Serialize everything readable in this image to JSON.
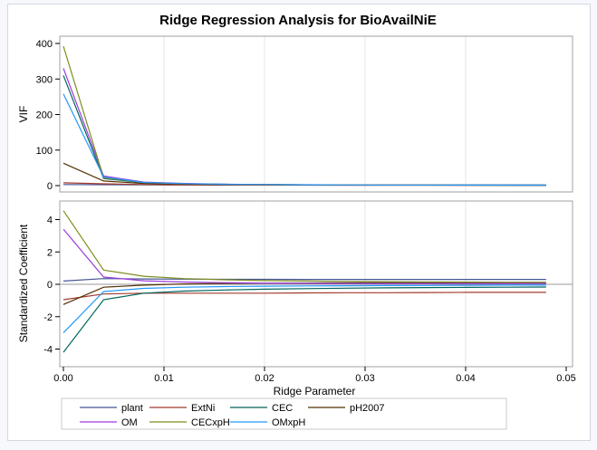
{
  "chart_data": [
    {
      "type": "line",
      "title": "Ridge Regression Analysis for BioAvailNiE",
      "panel": "top",
      "xlabel": "Ridge Parameter",
      "ylabel": "VIF",
      "xlim": [
        0,
        0.05
      ],
      "ylim": [
        -10,
        420
      ],
      "yticks": [
        0,
        100,
        200,
        300,
        400
      ],
      "grid": true,
      "x": [
        0,
        0.004,
        0.008,
        0.012,
        0.016,
        0.02,
        0.024,
        0.028,
        0.032,
        0.036,
        0.04,
        0.044,
        0.048
      ],
      "series": [
        {
          "name": "plant",
          "values": [
            3,
            2.5,
            2,
            1.8,
            1.6,
            1.5,
            1.4,
            1.3,
            1.3,
            1.2,
            1.2,
            1.2,
            1.1
          ]
        },
        {
          "name": "ExtNi",
          "values": [
            8,
            5,
            3,
            2,
            1.8,
            1.6,
            1.5,
            1.4,
            1.3,
            1.3,
            1.2,
            1.2,
            1.2
          ]
        },
        {
          "name": "CEC",
          "values": [
            310,
            20,
            8,
            5,
            3.5,
            2.8,
            2.3,
            2,
            1.8,
            1.6,
            1.5,
            1.4,
            1.3
          ]
        },
        {
          "name": "pH2007",
          "values": [
            63,
            13,
            6,
            4,
            3,
            2.5,
            2.1,
            1.9,
            1.7,
            1.5,
            1.4,
            1.3,
            1.2
          ]
        },
        {
          "name": "OM",
          "values": [
            330,
            27,
            10,
            6,
            4,
            3,
            2.5,
            2.1,
            1.9,
            1.7,
            1.6,
            1.5,
            1.4
          ]
        },
        {
          "name": "CECxpH",
          "values": [
            392,
            22,
            9,
            5,
            3.7,
            2.9,
            2.4,
            2,
            1.8,
            1.6,
            1.5,
            1.4,
            1.3
          ]
        },
        {
          "name": "OMxpH",
          "values": [
            258,
            24,
            9,
            5.5,
            3.8,
            3,
            2.4,
            2.1,
            1.9,
            1.7,
            1.6,
            1.5,
            1.4
          ]
        }
      ]
    },
    {
      "type": "line",
      "panel": "bottom",
      "xlabel": "Ridge Parameter",
      "ylabel": "Standardized Coefficient",
      "xlim": [
        0,
        0.05
      ],
      "ylim": [
        -4.6,
        5.0
      ],
      "yticks": [
        -4,
        -2,
        0,
        2,
        4
      ],
      "xticks": [
        "0.00",
        "0.01",
        "0.02",
        "0.03",
        "0.04",
        "0.05"
      ],
      "reference_line": 0,
      "grid": true,
      "legend": "bottom",
      "x": [
        0,
        0.004,
        0.008,
        0.012,
        0.016,
        0.02,
        0.024,
        0.028,
        0.032,
        0.036,
        0.04,
        0.044,
        0.048
      ],
      "series": [
        {
          "name": "plant",
          "values": [
            0.2,
            0.35,
            0.33,
            0.32,
            0.31,
            0.31,
            0.3,
            0.3,
            0.3,
            0.3,
            0.3,
            0.3,
            0.3
          ]
        },
        {
          "name": "ExtNi",
          "values": [
            -0.95,
            -0.6,
            -0.55,
            -0.55,
            -0.55,
            -0.55,
            -0.53,
            -0.52,
            -0.52,
            -0.51,
            -0.5,
            -0.5,
            -0.5
          ]
        },
        {
          "name": "CEC",
          "values": [
            -4.2,
            -0.95,
            -0.55,
            -0.42,
            -0.35,
            -0.3,
            -0.27,
            -0.24,
            -0.22,
            -0.2,
            -0.19,
            -0.18,
            -0.17
          ]
        },
        {
          "name": "pH2007",
          "values": [
            -1.25,
            -0.18,
            -0.05,
            0.02,
            0.05,
            0.07,
            0.08,
            0.09,
            0.1,
            0.1,
            0.1,
            0.1,
            0.1
          ]
        },
        {
          "name": "OM",
          "values": [
            3.4,
            0.45,
            0.22,
            0.14,
            0.1,
            0.08,
            0.06,
            0.05,
            0.05,
            0.05,
            0.05,
            0.05,
            0.05
          ]
        },
        {
          "name": "CECxpH",
          "values": [
            4.55,
            0.88,
            0.5,
            0.35,
            0.28,
            0.23,
            0.2,
            0.18,
            0.16,
            0.15,
            0.14,
            0.13,
            0.13
          ]
        },
        {
          "name": "OMxpH",
          "values": [
            -3,
            -0.45,
            -0.25,
            -0.18,
            -0.14,
            -0.12,
            -0.1,
            -0.09,
            -0.08,
            -0.07,
            -0.06,
            -0.05,
            -0.05
          ]
        }
      ]
    }
  ],
  "colors": {
    "plant": "#445694",
    "ExtNi": "#a23a2e",
    "CEC": "#01665e",
    "pH2007": "#543005",
    "OM": "#9d3cdb",
    "CECxpH": "#7f8e1f",
    "OMxpH": "#2597fa"
  }
}
